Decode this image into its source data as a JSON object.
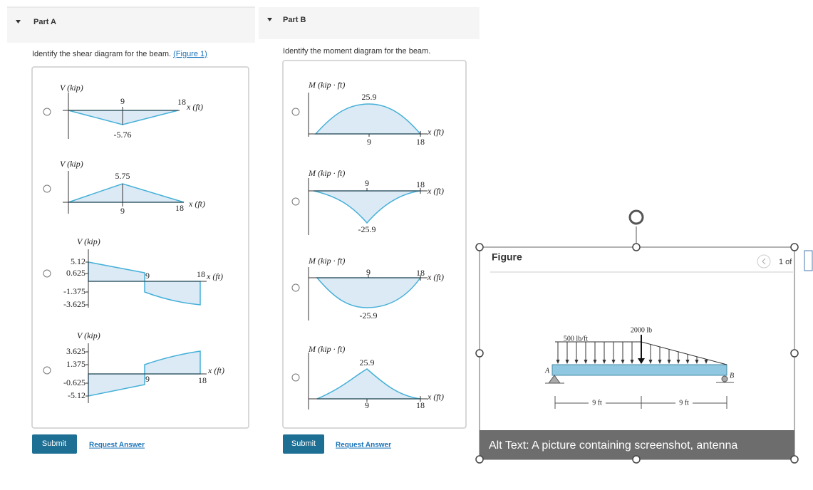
{
  "part_a": {
    "header": "Part A",
    "prompt": "Identify the shear diagram for the beam.",
    "figure_link": "(Figure 1)",
    "options": [
      {
        "y_axis": "V (kip)",
        "x_axis": "x (ft)",
        "labels": [
          9,
          18,
          -5.76
        ]
      },
      {
        "y_axis": "V (kip)",
        "x_axis": "x (ft)",
        "labels": [
          5.75,
          9,
          18
        ]
      },
      {
        "y_axis": "V (kip)",
        "x_axis": "x (ft)",
        "labels": [
          5.12,
          0.625,
          -1.375,
          -3.625,
          9,
          18
        ]
      },
      {
        "y_axis": "V (kip)",
        "x_axis": "x (ft)",
        "labels": [
          3.625,
          1.375,
          -0.625,
          -5.12,
          9,
          18
        ]
      }
    ],
    "submit": "Submit",
    "request_answer": "Request Answer"
  },
  "part_b": {
    "header": "Part B",
    "prompt": "Identify the moment diagram for the beam.",
    "options": [
      {
        "y_axis": "M (kip · ft)",
        "x_axis": "x (ft)",
        "labels": [
          25.9,
          9,
          18
        ]
      },
      {
        "y_axis": "M (kip · ft)",
        "x_axis": "x (ft)",
        "labels": [
          9,
          18,
          -25.9
        ]
      },
      {
        "y_axis": "M (kip · ft)",
        "x_axis": "x (ft)",
        "labels": [
          9,
          18,
          -25.9
        ]
      },
      {
        "y_axis": "M (kip · ft)",
        "x_axis": "x (ft)",
        "labels": [
          25.9,
          9,
          18
        ]
      }
    ],
    "submit": "Submit",
    "request_answer": "Request Answer"
  },
  "figure": {
    "title": "Figure",
    "pager": "1 of",
    "distributed_load": "500 lb/ft",
    "point_load": "2000 lb",
    "support_a": "A",
    "support_b": "B",
    "span_1": "9 ft",
    "span_2": "9 ft",
    "alt_text": "Alt Text: A picture containing screenshot, antenna"
  }
}
